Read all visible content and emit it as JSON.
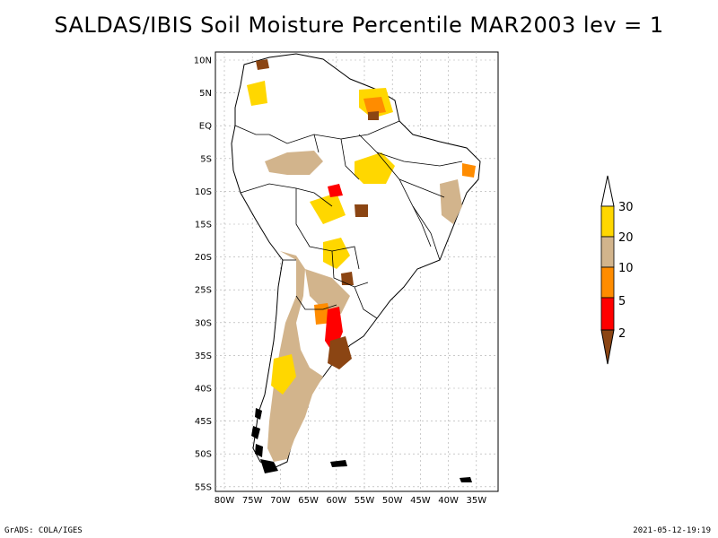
{
  "title": "SALDAS/IBIS Soil Moisture Percentile MAR2003 lev = 1",
  "lat_ticks": [
    "10N",
    "5N",
    "EQ",
    "5S",
    "10S",
    "15S",
    "20S",
    "25S",
    "30S",
    "35S",
    "40S",
    "45S",
    "50S",
    "55S"
  ],
  "lon_ticks": [
    "80W",
    "75W",
    "70W",
    "65W",
    "60W",
    "55W",
    "50W",
    "45W",
    "40W",
    "35W"
  ],
  "colorbar": {
    "levels": [
      "2",
      "5",
      "10",
      "20",
      "30"
    ],
    "colors": {
      "below_2": "#8b4513",
      "2_5": "#ff0000",
      "5_10": "#ff8c00",
      "10_20": "#d2b48c",
      "20_30": "#ffd700",
      "above_30": "#ffffff"
    }
  },
  "footer": {
    "left": "GrADS: COLA/IGES",
    "right": "2021-05-12-19:19"
  }
}
